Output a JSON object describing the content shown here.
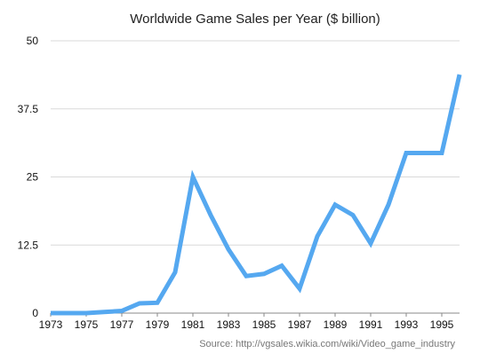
{
  "chart_data": {
    "type": "line",
    "title": "Worldwide Game Sales per Year ($ billion)",
    "source": "Source: http://vgsales.wikia.com/wiki/Video_game_industry",
    "ylim": [
      0,
      50
    ],
    "yticks": [
      0,
      12.5,
      25,
      37.5,
      50
    ],
    "ytick_labels": [
      "0",
      "12.5",
      "25",
      "37.5",
      "50"
    ],
    "xlim": [
      1973,
      1996
    ],
    "xticks": [
      1973,
      1975,
      1977,
      1979,
      1981,
      1983,
      1985,
      1987,
      1989,
      1991,
      1993,
      1995
    ],
    "grid": true,
    "series": [
      {
        "color": "#55a8f0",
        "x": [
          1973,
          1974,
          1975,
          1976,
          1977,
          1978,
          1979,
          1980,
          1981,
          1982,
          1983,
          1984,
          1985,
          1986,
          1987,
          1988,
          1989,
          1990,
          1991,
          1992,
          1993,
          1994,
          1995,
          1996
        ],
        "y": [
          0,
          0,
          0,
          0.2,
          0.4,
          1.8,
          1.9,
          7.5,
          25,
          18,
          11.7,
          6.8,
          7.2,
          8.7,
          4.5,
          14.1,
          19.9,
          18,
          12.8,
          19.9,
          29.4,
          29.4,
          29.4,
          43.8
        ]
      }
    ]
  }
}
